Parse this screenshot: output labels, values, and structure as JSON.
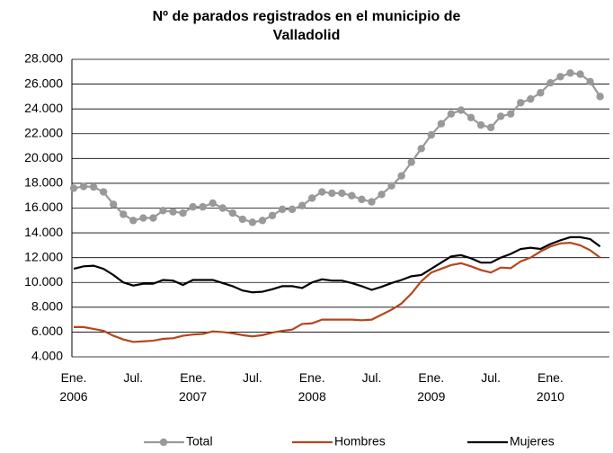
{
  "chart_data": {
    "type": "line",
    "title": "Nº de parados registrados en el municipio de Valladolid",
    "categories": [
      "Ene.\n2006",
      null,
      null,
      null,
      null,
      null,
      "Jul.",
      null,
      null,
      null,
      null,
      null,
      "Ene.\n2007",
      null,
      null,
      null,
      null,
      null,
      "Jul.",
      null,
      null,
      null,
      null,
      null,
      "Ene.\n2008",
      null,
      null,
      null,
      null,
      null,
      "Jul.",
      null,
      null,
      null,
      null,
      null,
      "Ene.\n2009",
      null,
      null,
      null,
      null,
      null,
      "Jul.",
      null,
      null,
      null,
      null,
      null,
      "Ene.\n2010",
      null,
      null,
      null,
      null,
      null
    ],
    "series": [
      {
        "name": "Total",
        "color": "#999999",
        "markers": true,
        "values": [
          17600,
          17750,
          17700,
          17300,
          16300,
          15500,
          15000,
          15200,
          15200,
          15800,
          15700,
          15600,
          16100,
          16100,
          16400,
          16000,
          15600,
          15100,
          14850,
          15000,
          15400,
          15900,
          15900,
          16200,
          16800,
          17300,
          17200,
          17200,
          17000,
          16700,
          16500,
          17100,
          17800,
          18600,
          19700,
          20800,
          21900,
          22800,
          23600,
          23900,
          23300,
          22700,
          22500,
          23400,
          23600,
          24500,
          24800,
          25300,
          26100,
          26600,
          26900,
          26800,
          26200,
          25000
        ]
      },
      {
        "name": "Hombres",
        "color": "#b5461b",
        "markers": false,
        "values": [
          6400,
          6400,
          6250,
          6100,
          5700,
          5400,
          5200,
          5250,
          5300,
          5450,
          5500,
          5700,
          5800,
          5850,
          6050,
          6000,
          5900,
          5750,
          5650,
          5750,
          5950,
          6100,
          6200,
          6650,
          6700,
          7000,
          7000,
          7000,
          7000,
          6950,
          7000,
          7400,
          7800,
          8300,
          9100,
          10100,
          10800,
          11100,
          11400,
          11550,
          11300,
          11000,
          10800,
          11200,
          11150,
          11700,
          12000,
          12500,
          12900,
          13150,
          13200,
          13000,
          12600,
          12000
        ]
      },
      {
        "name": "Mujeres",
        "color": "#000000",
        "markers": false,
        "values": [
          11100,
          11300,
          11350,
          11100,
          10600,
          10000,
          9750,
          9900,
          9900,
          10200,
          10150,
          9800,
          10200,
          10200,
          10200,
          9950,
          9700,
          9350,
          9200,
          9250,
          9450,
          9700,
          9700,
          9550,
          10000,
          10250,
          10150,
          10150,
          9950,
          9700,
          9400,
          9650,
          9950,
          10200,
          10500,
          10600,
          11100,
          11600,
          12100,
          12200,
          11950,
          11600,
          11600,
          12000,
          12300,
          12700,
          12800,
          12700,
          13100,
          13400,
          13650,
          13650,
          13500,
          12900
        ]
      }
    ],
    "ylim": [
      4000,
      28000
    ],
    "yticks": [
      {
        "value": 4000,
        "label": "4.000"
      },
      {
        "value": 6000,
        "label": "6.000"
      },
      {
        "value": 8000,
        "label": "8.000"
      },
      {
        "value": 10000,
        "label": "10.000"
      },
      {
        "value": 12000,
        "label": "12.000"
      },
      {
        "value": 14000,
        "label": "14.000"
      },
      {
        "value": 16000,
        "label": "16.000"
      },
      {
        "value": 18000,
        "label": "18.000"
      },
      {
        "value": 20000,
        "label": "20.000"
      },
      {
        "value": 22000,
        "label": "22.000"
      },
      {
        "value": 24000,
        "label": "24.000"
      },
      {
        "value": 26000,
        "label": "26.000"
      },
      {
        "value": 28000,
        "label": "28.000"
      }
    ],
    "grid": true,
    "legend": "bottom"
  }
}
